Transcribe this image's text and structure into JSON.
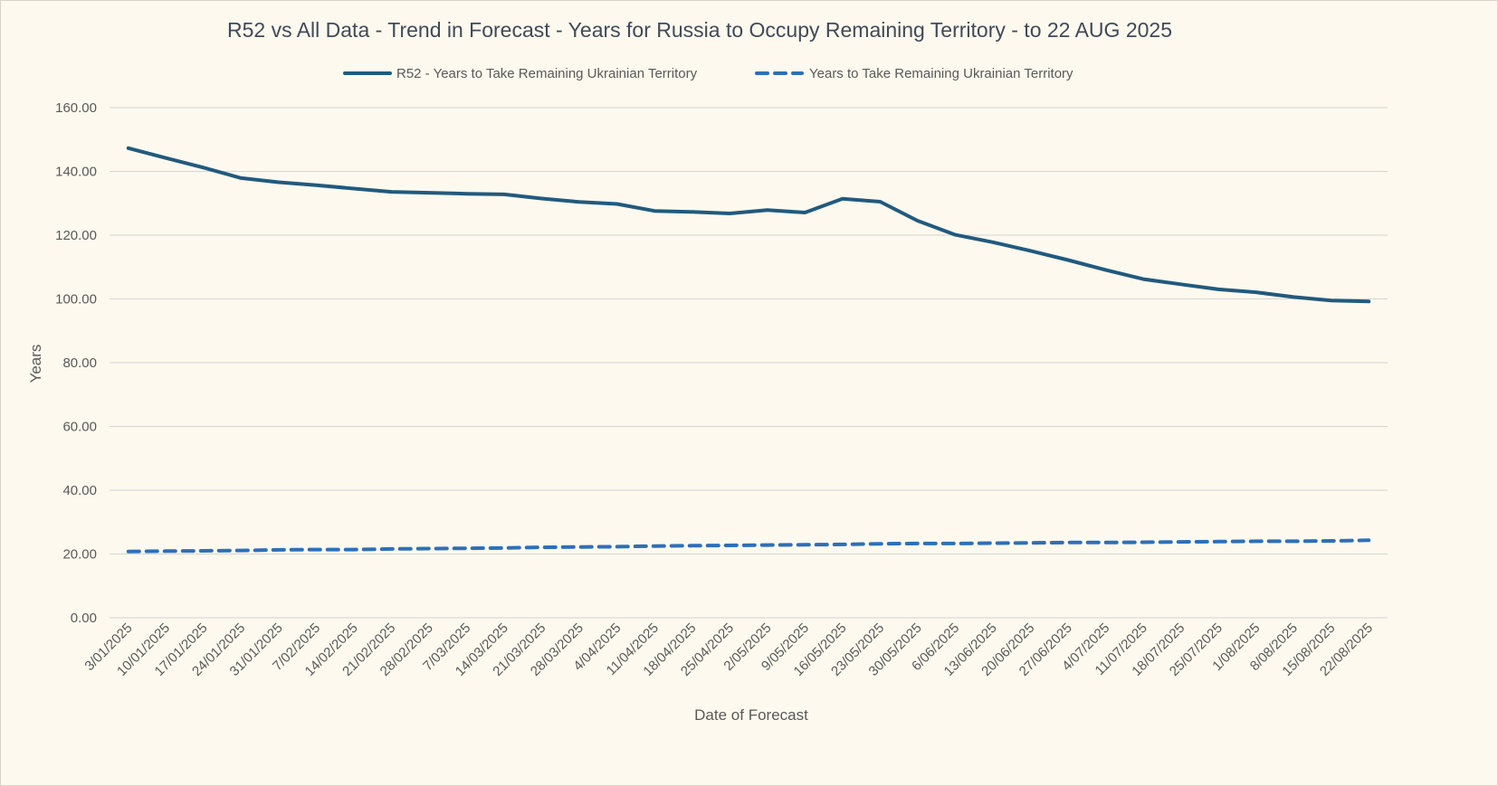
{
  "chart_data": {
    "type": "line",
    "title": "R52 vs All Data  - Trend in Forecast - Years for Russia to Occupy Remaining Territory - to 22 AUG 2025",
    "xlabel": "Date of Forecast",
    "ylabel": "Years",
    "ylim": [
      0,
      160
    ],
    "yticks": [
      "0.00",
      "20.00",
      "40.00",
      "60.00",
      "80.00",
      "100.00",
      "120.00",
      "140.00",
      "160.00"
    ],
    "grid": true,
    "legend_position": "top",
    "categories": [
      "3/01/2025",
      "10/01/2025",
      "17/01/2025",
      "24/01/2025",
      "31/01/2025",
      "7/02/2025",
      "14/02/2025",
      "21/02/2025",
      "28/02/2025",
      "7/03/2025",
      "14/03/2025",
      "21/03/2025",
      "28/03/2025",
      "4/04/2025",
      "11/04/2025",
      "18/04/2025",
      "25/04/2025",
      "2/05/2025",
      "9/05/2025",
      "16/05/2025",
      "23/05/2025",
      "30/05/2025",
      "6/06/2025",
      "13/06/2025",
      "20/06/2025",
      "27/06/2025",
      "4/07/2025",
      "11/07/2025",
      "18/07/2025",
      "25/07/2025",
      "1/08/2025",
      "8/08/2025",
      "15/08/2025",
      "22/08/2025"
    ],
    "series": [
      {
        "name": "R52 - Years to Take Remaining Ukrainian Territory",
        "style": "solid",
        "color": "#215a7d",
        "values": [
          147.3,
          144.2,
          141.2,
          137.9,
          136.6,
          135.7,
          134.6,
          133.6,
          133.3,
          133.0,
          132.8,
          131.5,
          130.4,
          129.8,
          127.6,
          127.3,
          126.8,
          127.9,
          127.1,
          131.4,
          130.5,
          124.5,
          120.1,
          117.8,
          115.1,
          112.2,
          109.1,
          106.2,
          104.6,
          103.0,
          102.1,
          100.6,
          99.5,
          99.2
        ]
      },
      {
        "name": "Years to Take Remaining Ukrainian Territory",
        "style": "dashed",
        "color": "#2e6fb8",
        "values": [
          20.8,
          20.9,
          21.0,
          21.1,
          21.3,
          21.4,
          21.4,
          21.6,
          21.7,
          21.8,
          21.9,
          22.1,
          22.2,
          22.3,
          22.5,
          22.6,
          22.7,
          22.8,
          22.9,
          23.0,
          23.2,
          23.3,
          23.3,
          23.4,
          23.5,
          23.6,
          23.6,
          23.7,
          23.8,
          23.9,
          24.0,
          24.0,
          24.1,
          24.3
        ]
      }
    ]
  }
}
